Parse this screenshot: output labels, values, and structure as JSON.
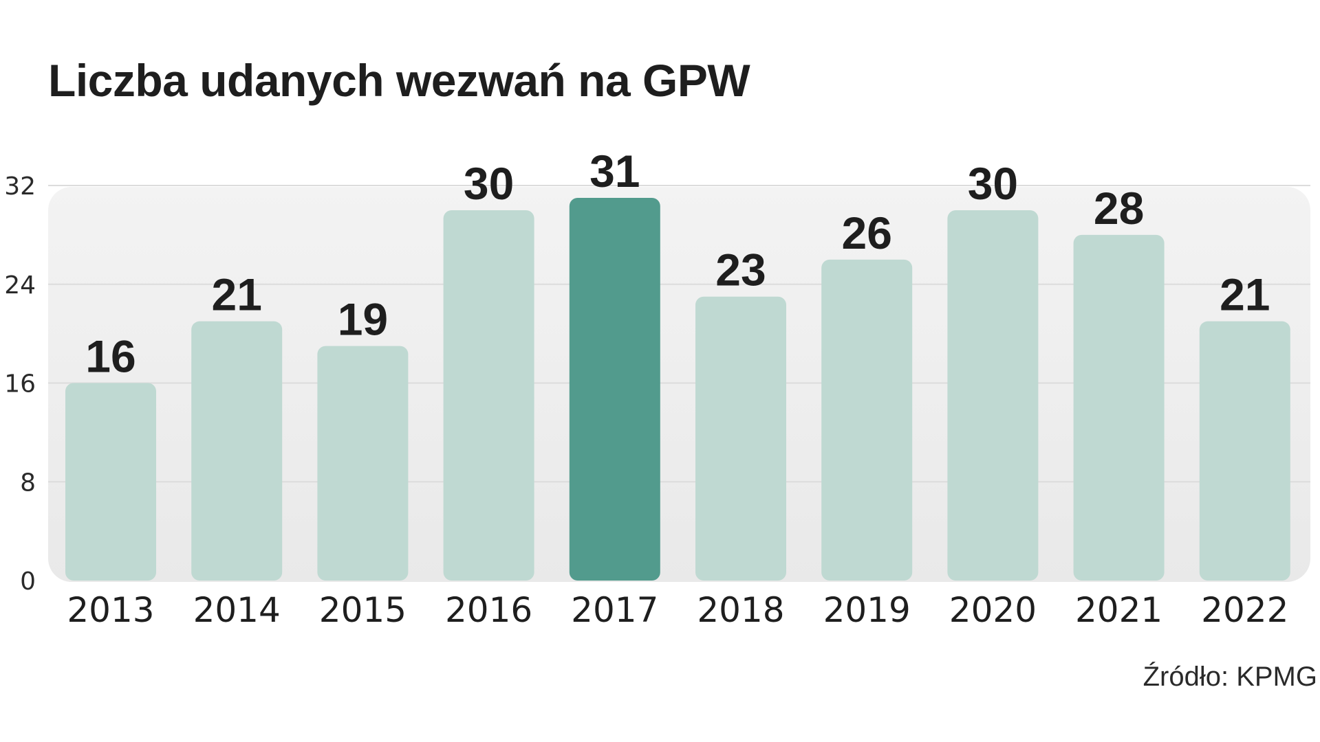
{
  "chart_data": {
    "type": "bar",
    "title": "Liczba udanych wezwań na GPW",
    "source": "Źródło: KPMG",
    "categories": [
      "2013",
      "2014",
      "2015",
      "2016",
      "2017",
      "2018",
      "2019",
      "2020",
      "2021",
      "2022"
    ],
    "values": [
      16,
      21,
      19,
      30,
      31,
      23,
      26,
      30,
      28,
      21
    ],
    "highlight_category": "2017",
    "ylim": [
      0,
      32
    ],
    "yticks": [
      0,
      8,
      16,
      24,
      32
    ],
    "grid": true,
    "legend": "none",
    "colors": {
      "bar": "#bfd9d2",
      "bar_highlight": "#529b8d",
      "plot_background": "#efefef",
      "gridline": "#dcdcdc"
    }
  }
}
